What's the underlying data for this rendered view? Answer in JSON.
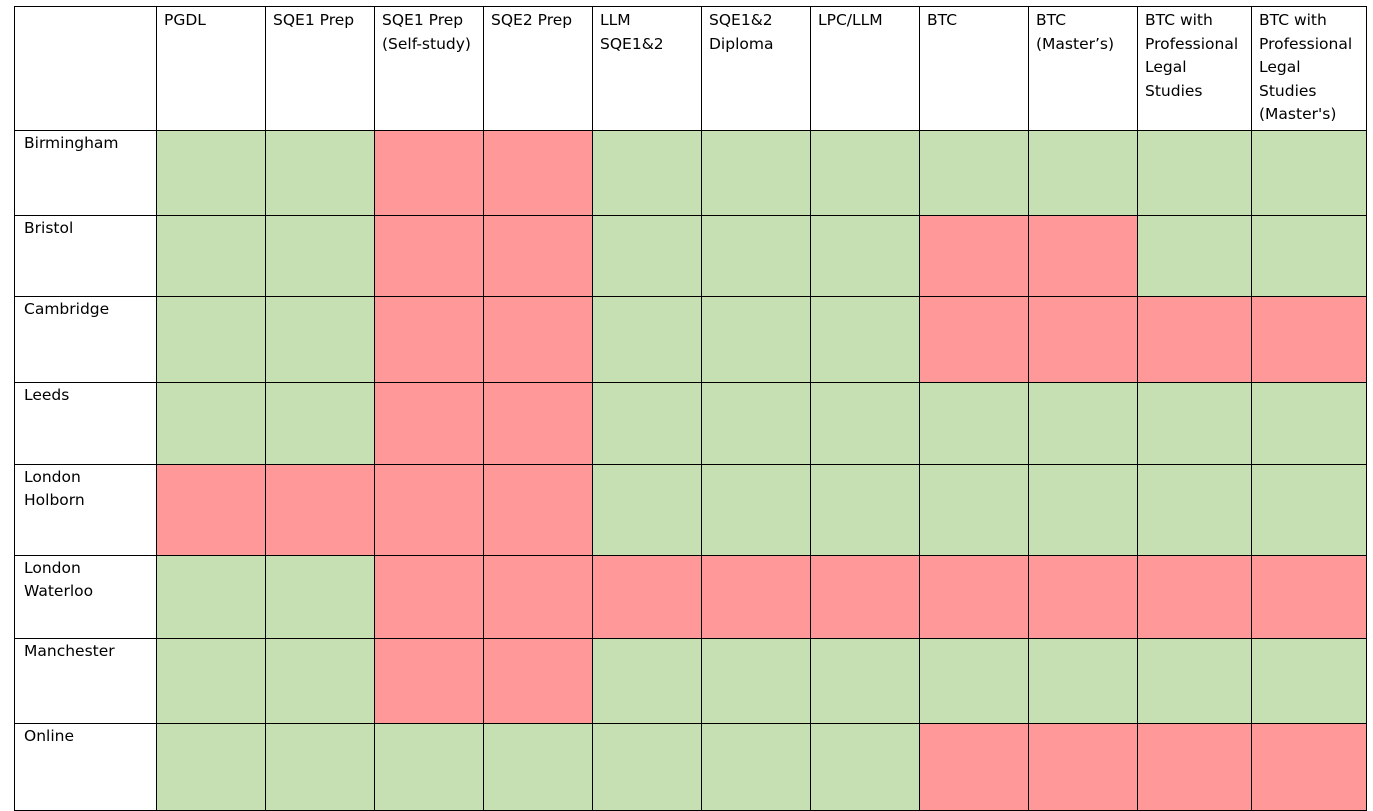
{
  "colors": {
    "available": "#c6e0b4",
    "unavailable": "#ff9999",
    "border": "#000000",
    "header_bg": "#ffffff"
  },
  "columns": [
    {
      "lines": [
        "PGDL"
      ]
    },
    {
      "lines": [
        "SQE1 Prep"
      ]
    },
    {
      "lines": [
        "SQE1 Prep",
        "(Self-study)"
      ]
    },
    {
      "lines": [
        "SQE2 Prep"
      ]
    },
    {
      "lines": [
        "LLM",
        "SQE1&2"
      ]
    },
    {
      "lines": [
        "SQE1&2",
        "Diploma"
      ]
    },
    {
      "lines": [
        "LPC/LLM"
      ]
    },
    {
      "lines": [
        "BTC"
      ]
    },
    {
      "lines": [
        "BTC",
        "(Master’s)"
      ]
    },
    {
      "lines": [
        "BTC with",
        "Professional",
        "Legal",
        "Studies"
      ]
    },
    {
      "lines": [
        "BTC with",
        "Professional",
        "Legal",
        "Studies",
        "(Master's)"
      ]
    }
  ],
  "rows": [
    {
      "lines": [
        "Birmingham"
      ],
      "cells": [
        "available",
        "available",
        "unavailable",
        "unavailable",
        "available",
        "available",
        "available",
        "available",
        "available",
        "available",
        "available"
      ]
    },
    {
      "lines": [
        "Bristol"
      ],
      "cells": [
        "available",
        "available",
        "unavailable",
        "unavailable",
        "available",
        "available",
        "available",
        "unavailable",
        "unavailable",
        "available",
        "available"
      ]
    },
    {
      "lines": [
        "Cambridge"
      ],
      "cells": [
        "available",
        "available",
        "unavailable",
        "unavailable",
        "available",
        "available",
        "available",
        "unavailable",
        "unavailable",
        "unavailable",
        "unavailable"
      ]
    },
    {
      "lines": [
        "Leeds"
      ],
      "cells": [
        "available",
        "available",
        "unavailable",
        "unavailable",
        "available",
        "available",
        "available",
        "available",
        "available",
        "available",
        "available"
      ]
    },
    {
      "lines": [
        "London",
        "Holborn"
      ],
      "cells": [
        "unavailable",
        "unavailable",
        "unavailable",
        "unavailable",
        "available",
        "available",
        "available",
        "available",
        "available",
        "available",
        "available"
      ]
    },
    {
      "lines": [
        "London",
        "Waterloo"
      ],
      "cells": [
        "available",
        "available",
        "unavailable",
        "unavailable",
        "unavailable",
        "unavailable",
        "unavailable",
        "unavailable",
        "unavailable",
        "unavailable",
        "unavailable"
      ]
    },
    {
      "lines": [
        "Manchester"
      ],
      "cells": [
        "available",
        "available",
        "unavailable",
        "unavailable",
        "available",
        "available",
        "available",
        "available",
        "available",
        "available",
        "available"
      ]
    },
    {
      "lines": [
        "Online"
      ],
      "cells": [
        "available",
        "available",
        "available",
        "available",
        "available",
        "available",
        "available",
        "unavailable",
        "unavailable",
        "unavailable",
        "unavailable"
      ]
    }
  ]
}
